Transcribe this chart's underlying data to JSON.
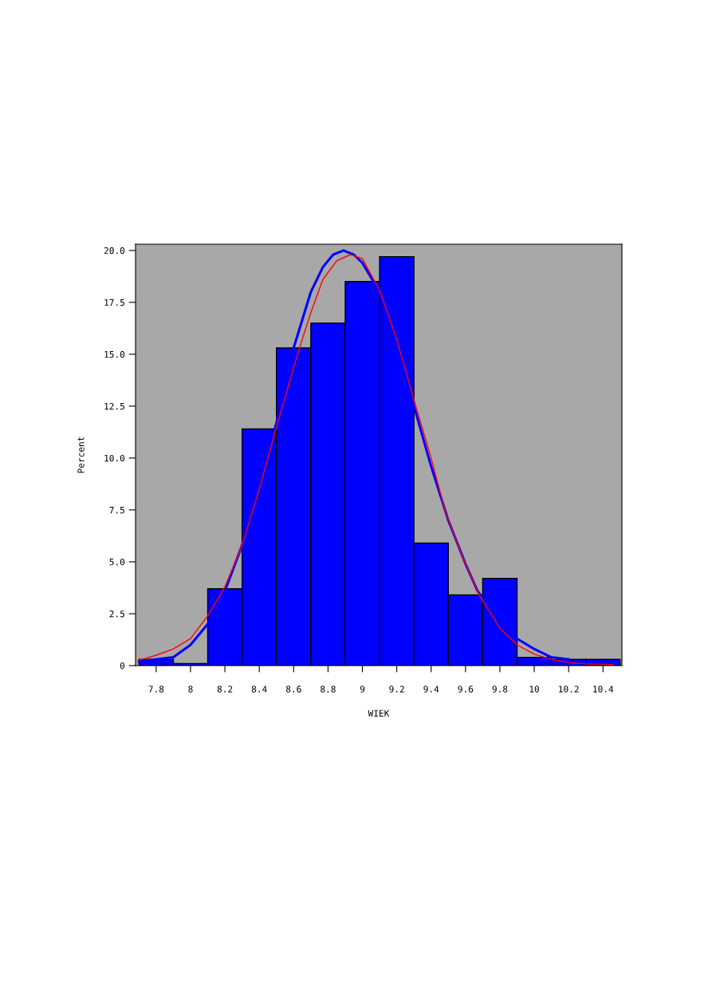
{
  "chart_data": {
    "type": "histogram",
    "xlabel": "WIEK",
    "ylabel": "Percent",
    "bins": [
      7.7,
      7.9,
      8.1,
      8.3,
      8.5,
      8.7,
      8.9,
      9.1,
      9.3,
      9.5,
      9.7,
      9.9,
      10.1,
      10.3,
      10.5
    ],
    "values": [
      0.3,
      0.1,
      3.7,
      11.4,
      15.3,
      16.5,
      18.5,
      19.7,
      5.9,
      3.4,
      4.2,
      0.4,
      0.3,
      0.3
    ],
    "color": "#0000ff",
    "series": [
      {
        "type": "line",
        "color": "#0000ff",
        "x": [
          7.7,
          7.9,
          8.0,
          8.1,
          8.2,
          8.3,
          8.4,
          8.5,
          8.6,
          8.7,
          8.77,
          8.83,
          8.89,
          8.95,
          9.0,
          9.1,
          9.2,
          9.3,
          9.4,
          9.5,
          9.6,
          9.67,
          9.8,
          9.9,
          10.0,
          10.1,
          10.2
        ],
        "values": [
          0.2,
          0.4,
          1.0,
          2.0,
          3.6,
          5.8,
          8.6,
          11.7,
          15.3,
          18.0,
          19.2,
          19.8,
          20.0,
          19.8,
          19.4,
          18.0,
          15.3,
          12.5,
          9.6,
          7.0,
          4.9,
          3.6,
          2.1,
          1.3,
          0.8,
          0.4,
          0.3
        ]
      },
      {
        "type": "line",
        "color": "#ff0000",
        "x": [
          7.7,
          7.8,
          7.9,
          8.0,
          8.1,
          8.2,
          8.3,
          8.4,
          8.5,
          8.63,
          8.7,
          8.77,
          8.85,
          8.93,
          9.0,
          9.1,
          9.2,
          9.3,
          9.4,
          9.48,
          9.58,
          9.68,
          9.8,
          9.9,
          10.0,
          10.1,
          10.2,
          10.3,
          10.46
        ],
        "values": [
          0.25,
          0.5,
          0.8,
          1.3,
          2.4,
          3.8,
          5.8,
          8.5,
          11.5,
          15.2,
          17.0,
          18.6,
          19.5,
          19.8,
          19.6,
          18.1,
          15.7,
          12.8,
          10.0,
          7.5,
          5.3,
          3.4,
          1.8,
          1.0,
          0.55,
          0.3,
          0.15,
          0.08,
          0.05
        ]
      }
    ],
    "xlim": [
      7.68,
      10.51
    ],
    "xticks": [
      {
        "value": 7.8,
        "label": "7.8"
      },
      8,
      {
        "value": 8.2,
        "label": "8.2"
      },
      {
        "value": 8.4,
        "label": "8.4"
      },
      {
        "value": 8.6,
        "label": "8.6"
      },
      {
        "value": 8.8,
        "label": "8.8"
      },
      9,
      {
        "value": 9.2,
        "label": "9.2"
      },
      {
        "value": 9.4,
        "label": "9.4"
      },
      {
        "value": 9.6,
        "label": "9.6"
      },
      {
        "value": 9.8,
        "label": "9.8"
      },
      10,
      {
        "value": 10.2,
        "label": "10.2"
      },
      {
        "value": 10.4,
        "label": "10.4"
      }
    ],
    "ylim": [
      0,
      20.3
    ],
    "yticks": [
      0,
      2.5,
      {
        "value": 5,
        "label": "5.0"
      },
      7.5,
      {
        "value": 10,
        "label": "10.0"
      },
      12.5,
      {
        "value": 15,
        "label": "15.0"
      },
      17.5,
      {
        "value": 20,
        "label": "20.0"
      }
    ],
    "marker": "none",
    "line_style": "solid",
    "grid": false,
    "legend": false
  }
}
